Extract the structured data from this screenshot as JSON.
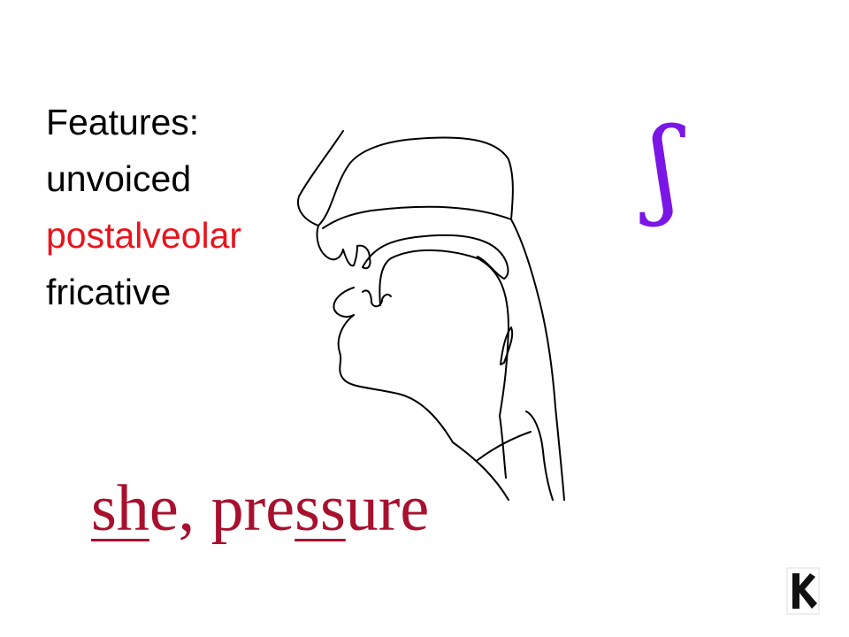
{
  "features": {
    "heading": "Features:",
    "voicing": "unvoiced",
    "place": "postalveolar",
    "manner": "fricative",
    "highlight_color": "#e8141c"
  },
  "symbol": {
    "glyph": "ʃ",
    "color": "#7a17e6"
  },
  "examples": {
    "color": "#a8102e",
    "word1_underlined": "sh",
    "word1_rest": "e, pre",
    "word2_underlined": "ss",
    "word2_rest": "ure"
  },
  "icons": {
    "diagram": "vocal-tract-sagittal-section-diagram",
    "logo": "corner-logo-icon"
  }
}
